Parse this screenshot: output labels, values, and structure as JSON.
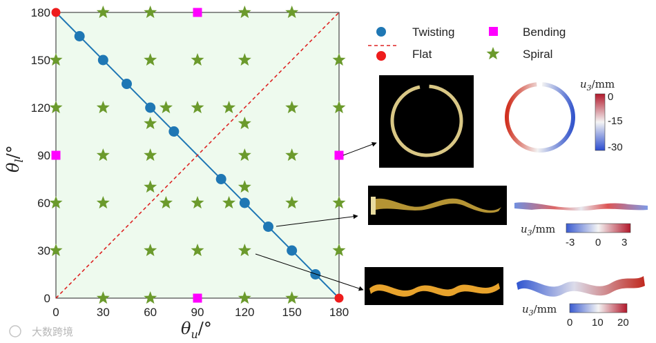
{
  "chart_data": {
    "type": "scatter",
    "xlabel": "θ_u/°",
    "ylabel": "θ_l/°",
    "xlim": [
      0,
      180
    ],
    "ylim": [
      0,
      180
    ],
    "xticks": [
      "0",
      "30",
      "60",
      "90",
      "120",
      "150",
      "180"
    ],
    "yticks": [
      "0",
      "30",
      "60",
      "90",
      "120",
      "150",
      "180"
    ],
    "series": [
      {
        "name": "Twisting",
        "marker": "circle",
        "color": "#1f77b4",
        "points": [
          [
            15,
            165
          ],
          [
            30,
            150
          ],
          [
            45,
            135
          ],
          [
            60,
            120
          ],
          [
            75,
            105
          ],
          [
            105,
            75
          ],
          [
            120,
            60
          ],
          [
            135,
            45
          ],
          [
            150,
            30
          ],
          [
            165,
            15
          ]
        ]
      },
      {
        "name": "Bending",
        "marker": "square",
        "color": "#ff00ff",
        "points": [
          [
            90,
            180
          ],
          [
            0,
            90
          ],
          [
            180,
            90
          ],
          [
            90,
            0
          ]
        ]
      },
      {
        "name": "Flat",
        "marker": "circle",
        "color": "#ee1c1c",
        "points": [
          [
            0,
            180
          ],
          [
            180,
            0
          ]
        ]
      },
      {
        "name": "Spiral",
        "marker": "star",
        "color": "#6b9a2c",
        "points": [
          [
            30,
            180
          ],
          [
            60,
            180
          ],
          [
            120,
            180
          ],
          [
            150,
            180
          ],
          [
            0,
            150
          ],
          [
            60,
            150
          ],
          [
            90,
            150
          ],
          [
            120,
            150
          ],
          [
            180,
            150
          ],
          [
            0,
            120
          ],
          [
            30,
            120
          ],
          [
            70,
            120
          ],
          [
            90,
            120
          ],
          [
            110,
            120
          ],
          [
            150,
            120
          ],
          [
            180,
            120
          ],
          [
            60,
            110
          ],
          [
            120,
            110
          ],
          [
            30,
            90
          ],
          [
            60,
            90
          ],
          [
            120,
            90
          ],
          [
            150,
            90
          ],
          [
            60,
            70
          ],
          [
            120,
            70
          ],
          [
            0,
            60
          ],
          [
            30,
            60
          ],
          [
            70,
            60
          ],
          [
            90,
            60
          ],
          [
            110,
            60
          ],
          [
            150,
            60
          ],
          [
            180,
            60
          ],
          [
            0,
            30
          ],
          [
            60,
            30
          ],
          [
            90,
            30
          ],
          [
            120,
            30
          ],
          [
            180,
            30
          ],
          [
            30,
            0
          ],
          [
            60,
            0
          ],
          [
            120,
            0
          ],
          [
            150,
            0
          ]
        ]
      }
    ],
    "lines": [
      {
        "name": "twisting-line",
        "color": "#1f77b4",
        "style": "solid",
        "from": [
          0,
          180
        ],
        "to": [
          180,
          0
        ]
      },
      {
        "name": "flat-line",
        "color": "#dd2222",
        "style": "dashed",
        "from": [
          0,
          0
        ],
        "to": [
          180,
          180
        ]
      }
    ],
    "legend": {
      "position": "right-top",
      "entries": [
        "Twisting",
        "Bending",
        "Flat",
        "Spiral"
      ]
    },
    "annotation_arrows": [
      {
        "from_data": [
          180,
          90
        ],
        "target": "bending-panel"
      },
      {
        "from_data": [
          135,
          45
        ],
        "target": "twisting-panel"
      },
      {
        "from_data": [
          120,
          30
        ],
        "target": "spiral-panel"
      }
    ],
    "insets": [
      {
        "name": "bending",
        "shape": "ring",
        "colorbar": {
          "label": "u_3/mm",
          "orientation": "vertical",
          "ticks": [
            "0",
            "-15",
            "-30"
          ],
          "range": [
            -30,
            0
          ]
        }
      },
      {
        "name": "twisting",
        "shape": "twisted-strip",
        "colorbar": {
          "label": "u_3/mm",
          "orientation": "horizontal",
          "ticks": [
            "-3",
            "0",
            "3"
          ],
          "range": [
            -3,
            3
          ]
        }
      },
      {
        "name": "spiral",
        "shape": "helical-strip",
        "colorbar": {
          "label": "u_3/mm",
          "orientation": "horizontal",
          "ticks": [
            "0",
            "10",
            "20"
          ],
          "range": [
            0,
            20
          ]
        }
      }
    ],
    "plot_background": "#eefaee"
  },
  "watermark": "大数跨境"
}
